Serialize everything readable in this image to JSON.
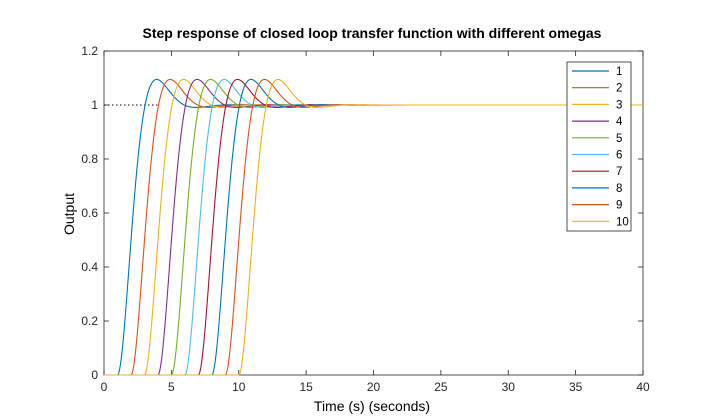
{
  "chart_data": {
    "type": "line",
    "title": "Step response of closed loop transfer function with different omegas",
    "xlabel": "Time (s) (seconds)",
    "ylabel": "Output",
    "xlim": [
      0,
      40
    ],
    "ylim": [
      0,
      1.2
    ],
    "xticks": [
      "0",
      "5",
      "10",
      "15",
      "20",
      "25",
      "30",
      "35",
      "40"
    ],
    "yticks": [
      "0",
      "0.2",
      "0.4",
      "0.6",
      "0.8",
      "1",
      "1.2"
    ],
    "grid": false,
    "legend_position": "top-right",
    "reference_line": {
      "y": 1,
      "style": "dotted",
      "x_range": [
        0,
        4
      ]
    },
    "series_shape": "delayed second-order step response (overshoot about 1.10, peak about 2.9 s after onset, settles to 1)",
    "series": [
      {
        "name": "1",
        "color": "#0072BD",
        "delay": 1.0,
        "peak": [
          4.0,
          1.1
        ],
        "settle_x": 18
      },
      {
        "name": "2",
        "color": "#D95319",
        "delay": 2.0,
        "peak": [
          5.0,
          1.1
        ],
        "settle_x": 19
      },
      {
        "name": "3",
        "color": "#EDB120",
        "delay": 3.0,
        "peak": [
          6.0,
          1.1
        ],
        "settle_x": 20
      },
      {
        "name": "4",
        "color": "#7E2F8E",
        "delay": 4.0,
        "peak": [
          6.9,
          1.1
        ],
        "settle_x": 20
      },
      {
        "name": "5",
        "color": "#77AC30",
        "delay": 5.0,
        "peak": [
          7.9,
          1.1
        ],
        "settle_x": 21
      },
      {
        "name": "6",
        "color": "#4DBEEE",
        "delay": 6.0,
        "peak": [
          8.9,
          1.1
        ],
        "settle_x": 21
      },
      {
        "name": "7",
        "color": "#A2142F",
        "delay": 7.0,
        "peak": [
          9.9,
          1.1
        ],
        "settle_x": 22
      },
      {
        "name": "8",
        "color": "#0072BD",
        "delay": 8.0,
        "peak": [
          10.9,
          1.1
        ],
        "settle_x": 22
      },
      {
        "name": "9",
        "color": "#D95319",
        "delay": 9.0,
        "peak": [
          11.9,
          1.1
        ],
        "settle_x": 23
      },
      {
        "name": "10",
        "color": "#EDB120",
        "delay": 10.0,
        "peak": [
          12.8,
          1.1
        ],
        "settle_x": 23
      }
    ]
  }
}
